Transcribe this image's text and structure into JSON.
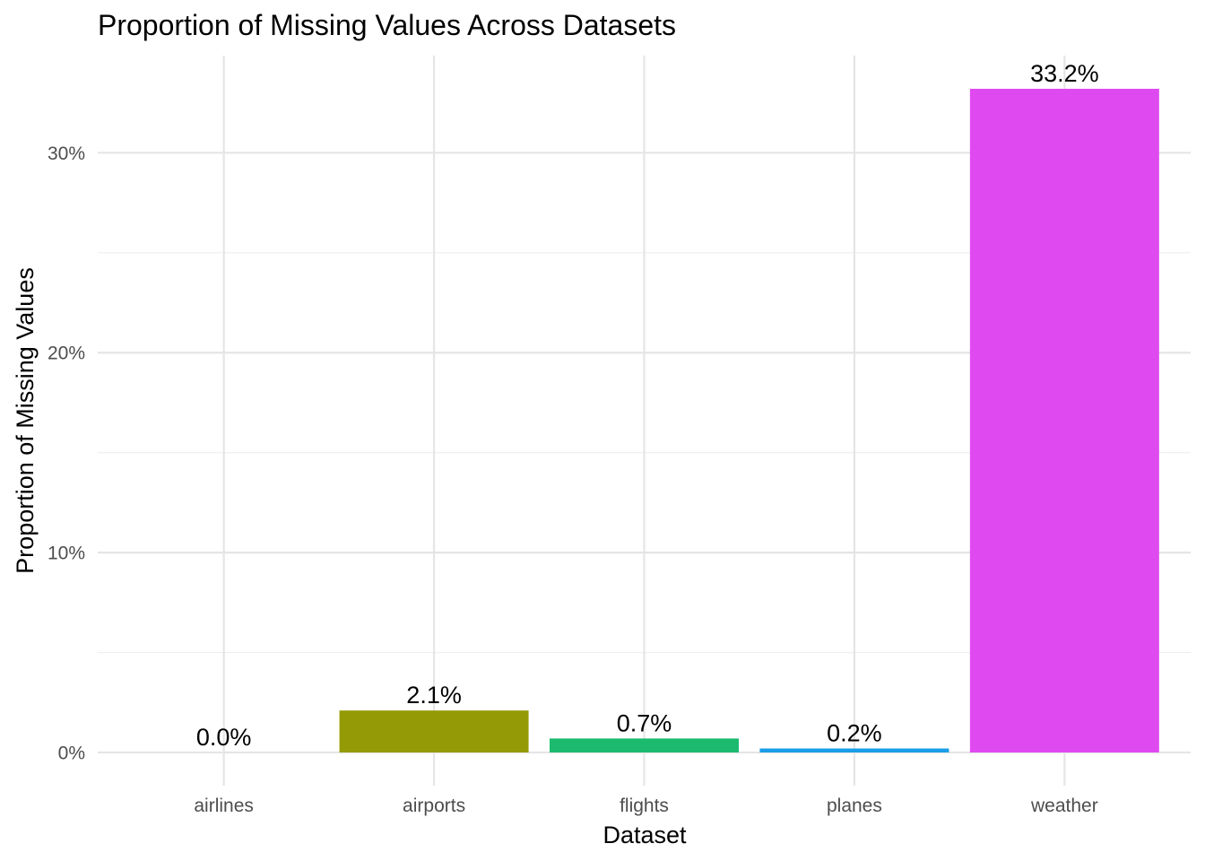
{
  "chart_data": {
    "type": "bar",
    "title": "Proportion of Missing Values Across Datasets",
    "xlabel": "Dataset",
    "ylabel": "Proportion of Missing Values",
    "categories": [
      "airlines",
      "airports",
      "flights",
      "planes",
      "weather"
    ],
    "values": [
      0.0,
      2.1,
      0.7,
      0.2,
      33.2
    ],
    "value_labels": [
      "0.0%",
      "2.1%",
      "0.7%",
      "0.2%",
      "33.2%"
    ],
    "colors": [
      "#F8766D",
      "#A3A500",
      "#00BF7D",
      "#00B0F6",
      "#E76BF3"
    ],
    "bar_colors": [
      "#f8766d",
      "#939a06",
      "#1cba6e",
      "#1a9de6",
      "#df4af0"
    ],
    "yticks": [
      0,
      10,
      20,
      30
    ],
    "ytick_labels": [
      "0%",
      "10%",
      "20%",
      "30%"
    ],
    "ylim": [
      -1.66,
      34.86
    ],
    "grid": true,
    "legend": "none",
    "theme": "minimal"
  }
}
